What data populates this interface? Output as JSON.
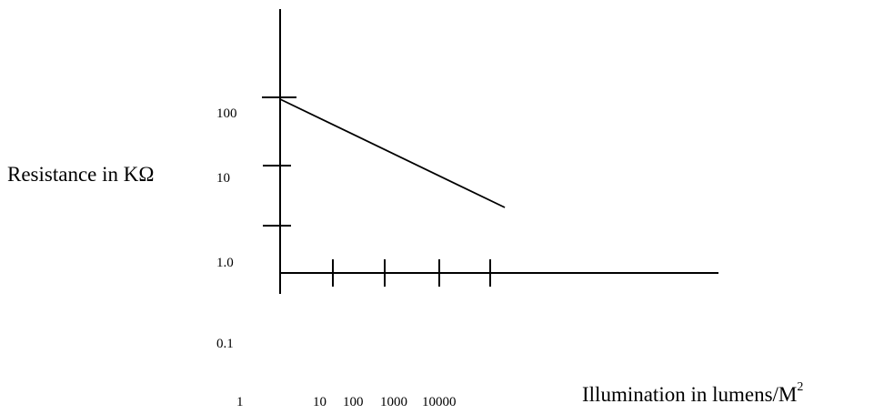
{
  "chart_data": {
    "type": "line",
    "title": "",
    "ylabel": "Resistance in KΩ",
    "xlabel": {
      "text": "Illumination in lumens/M",
      "superscript": "2"
    },
    "x_tick_labels": [
      "1",
      "10",
      "100",
      "1000",
      "10000"
    ],
    "y_tick_labels": [
      "100",
      "10",
      "1.0",
      "0.1"
    ],
    "scale": "log-log",
    "grid": false,
    "legend": "none",
    "series": [
      {
        "points": [
          {
            "x": 1,
            "y": 75
          },
          {
            "x": 20000,
            "y": 4
          }
        ]
      }
    ],
    "colors": {
      "line": "#000000",
      "axes": "#000000",
      "background": "#ffffff"
    }
  }
}
